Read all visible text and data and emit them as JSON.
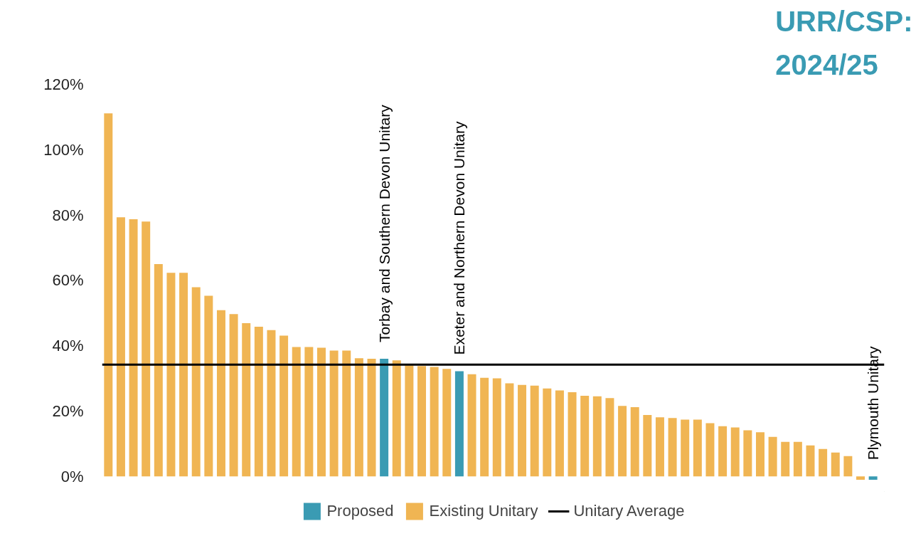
{
  "chart_data": {
    "type": "bar",
    "title": "URR/CSP:\n2024/25",
    "categories": [
      null,
      null,
      null,
      null,
      null,
      null,
      null,
      null,
      null,
      null,
      null,
      null,
      null,
      null,
      null,
      null,
      null,
      null,
      null,
      null,
      null,
      null,
      "Torbay and Southern Devon Unitary",
      null,
      null,
      null,
      null,
      null,
      "Exeter and Northern Devon Unitary",
      null,
      null,
      null,
      null,
      null,
      null,
      null,
      null,
      null,
      null,
      null,
      null,
      null,
      null,
      null,
      null,
      null,
      null,
      null,
      null,
      null,
      null,
      null,
      null,
      null,
      null,
      null,
      null,
      null,
      null,
      null,
      null,
      "Plymouth Unitary"
    ],
    "series": [
      {
        "name": "Proposed",
        "color": "#3a9bb3",
        "values": [
          null,
          null,
          null,
          null,
          null,
          null,
          null,
          null,
          null,
          null,
          null,
          null,
          null,
          null,
          null,
          null,
          null,
          null,
          null,
          null,
          null,
          null,
          36.0,
          null,
          null,
          null,
          null,
          null,
          32.2,
          null,
          null,
          null,
          null,
          null,
          null,
          null,
          null,
          null,
          null,
          null,
          null,
          null,
          null,
          null,
          null,
          null,
          null,
          null,
          null,
          null,
          null,
          null,
          null,
          null,
          null,
          null,
          null,
          null,
          null,
          null,
          null,
          -1.0
        ]
      },
      {
        "name": "Existing Unitary",
        "color": "#f0b553",
        "values": [
          111.1,
          79.3,
          78.7,
          78.0,
          65.0,
          62.3,
          62.3,
          57.9,
          55.3,
          50.9,
          49.7,
          46.9,
          45.8,
          44.8,
          43.1,
          39.6,
          39.6,
          39.4,
          38.5,
          38.5,
          36.2,
          36.0,
          null,
          35.5,
          34.0,
          33.8,
          33.5,
          32.9,
          null,
          31.3,
          30.2,
          30.0,
          28.5,
          28.0,
          27.8,
          26.9,
          26.3,
          25.8,
          24.7,
          24.5,
          24.0,
          21.6,
          21.2,
          18.8,
          18.1,
          17.9,
          17.4,
          17.4,
          16.3,
          15.4,
          15.0,
          14.1,
          13.5,
          12.1,
          10.6,
          10.6,
          9.5,
          8.4,
          7.3,
          6.2,
          -1.0,
          null
        ]
      }
    ],
    "ref_lines": [
      {
        "axis": "y",
        "value": 34.2,
        "label": "Unitary Average",
        "color": "#000000"
      }
    ],
    "ylim": [
      -2,
      120
    ],
    "yticks": [
      {
        "value": 0,
        "label": "0%"
      },
      {
        "value": 20,
        "label": "20%"
      },
      {
        "value": 40,
        "label": "40%"
      },
      {
        "value": 60,
        "label": "60%"
      },
      {
        "value": 80,
        "label": "80%"
      },
      {
        "value": 100,
        "label": "100%"
      },
      {
        "value": 120,
        "label": "120%"
      }
    ],
    "grid": false,
    "legend": "bottom",
    "tick_labels": "y"
  }
}
